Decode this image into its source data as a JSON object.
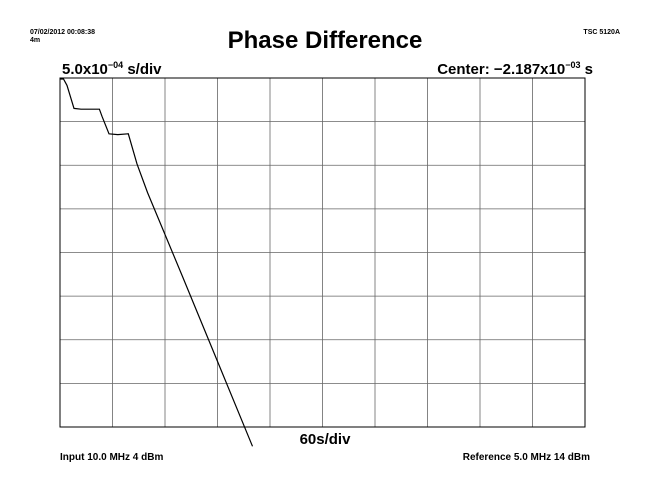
{
  "header": {
    "date_time": "07/02/2012 00:08:38",
    "duration": "4m",
    "instrument": "TSC 5120A",
    "title": "Phase Difference"
  },
  "scale": {
    "y_mantissa": "5.0x10",
    "y_exponent": "−04",
    "y_unit": " s/div",
    "center_label": "Center: −2.187x10",
    "center_exponent": "−03",
    "center_unit": " s",
    "x_scale": "60s/div"
  },
  "footer": {
    "input": "Input 10.0 MHz 4 dBm",
    "reference": "Reference 5.0 MHz 14 dBm"
  },
  "colors": {
    "grid": "#666666",
    "frame": "#000000",
    "trace": "#000000"
  },
  "chart_data": {
    "type": "line",
    "title": "Phase Difference",
    "xlabel": "60s/div",
    "ylabel": "5.0x10^-04 s/div",
    "x_units": "s",
    "y_units": "s",
    "xlim": [
      0,
      600
    ],
    "ylim": [
      -0.004387,
      1.3e-05
    ],
    "grid": true,
    "x_divisions": 10,
    "y_divisions": 8,
    "series": [
      {
        "x": [
          0,
          4,
          8,
          16,
          24,
          45,
          48,
          56,
          66,
          78,
          88,
          100,
          140,
          180,
          220
        ],
        "y": [
          0.0,
          0.0,
          -8e-05,
          -0.00037,
          -0.00038,
          -0.00038,
          -0.00047,
          -0.00069,
          -0.0007,
          -0.00069,
          -0.00107,
          -0.00143,
          -0.00249,
          -0.00356,
          -0.00463
        ]
      }
    ]
  }
}
